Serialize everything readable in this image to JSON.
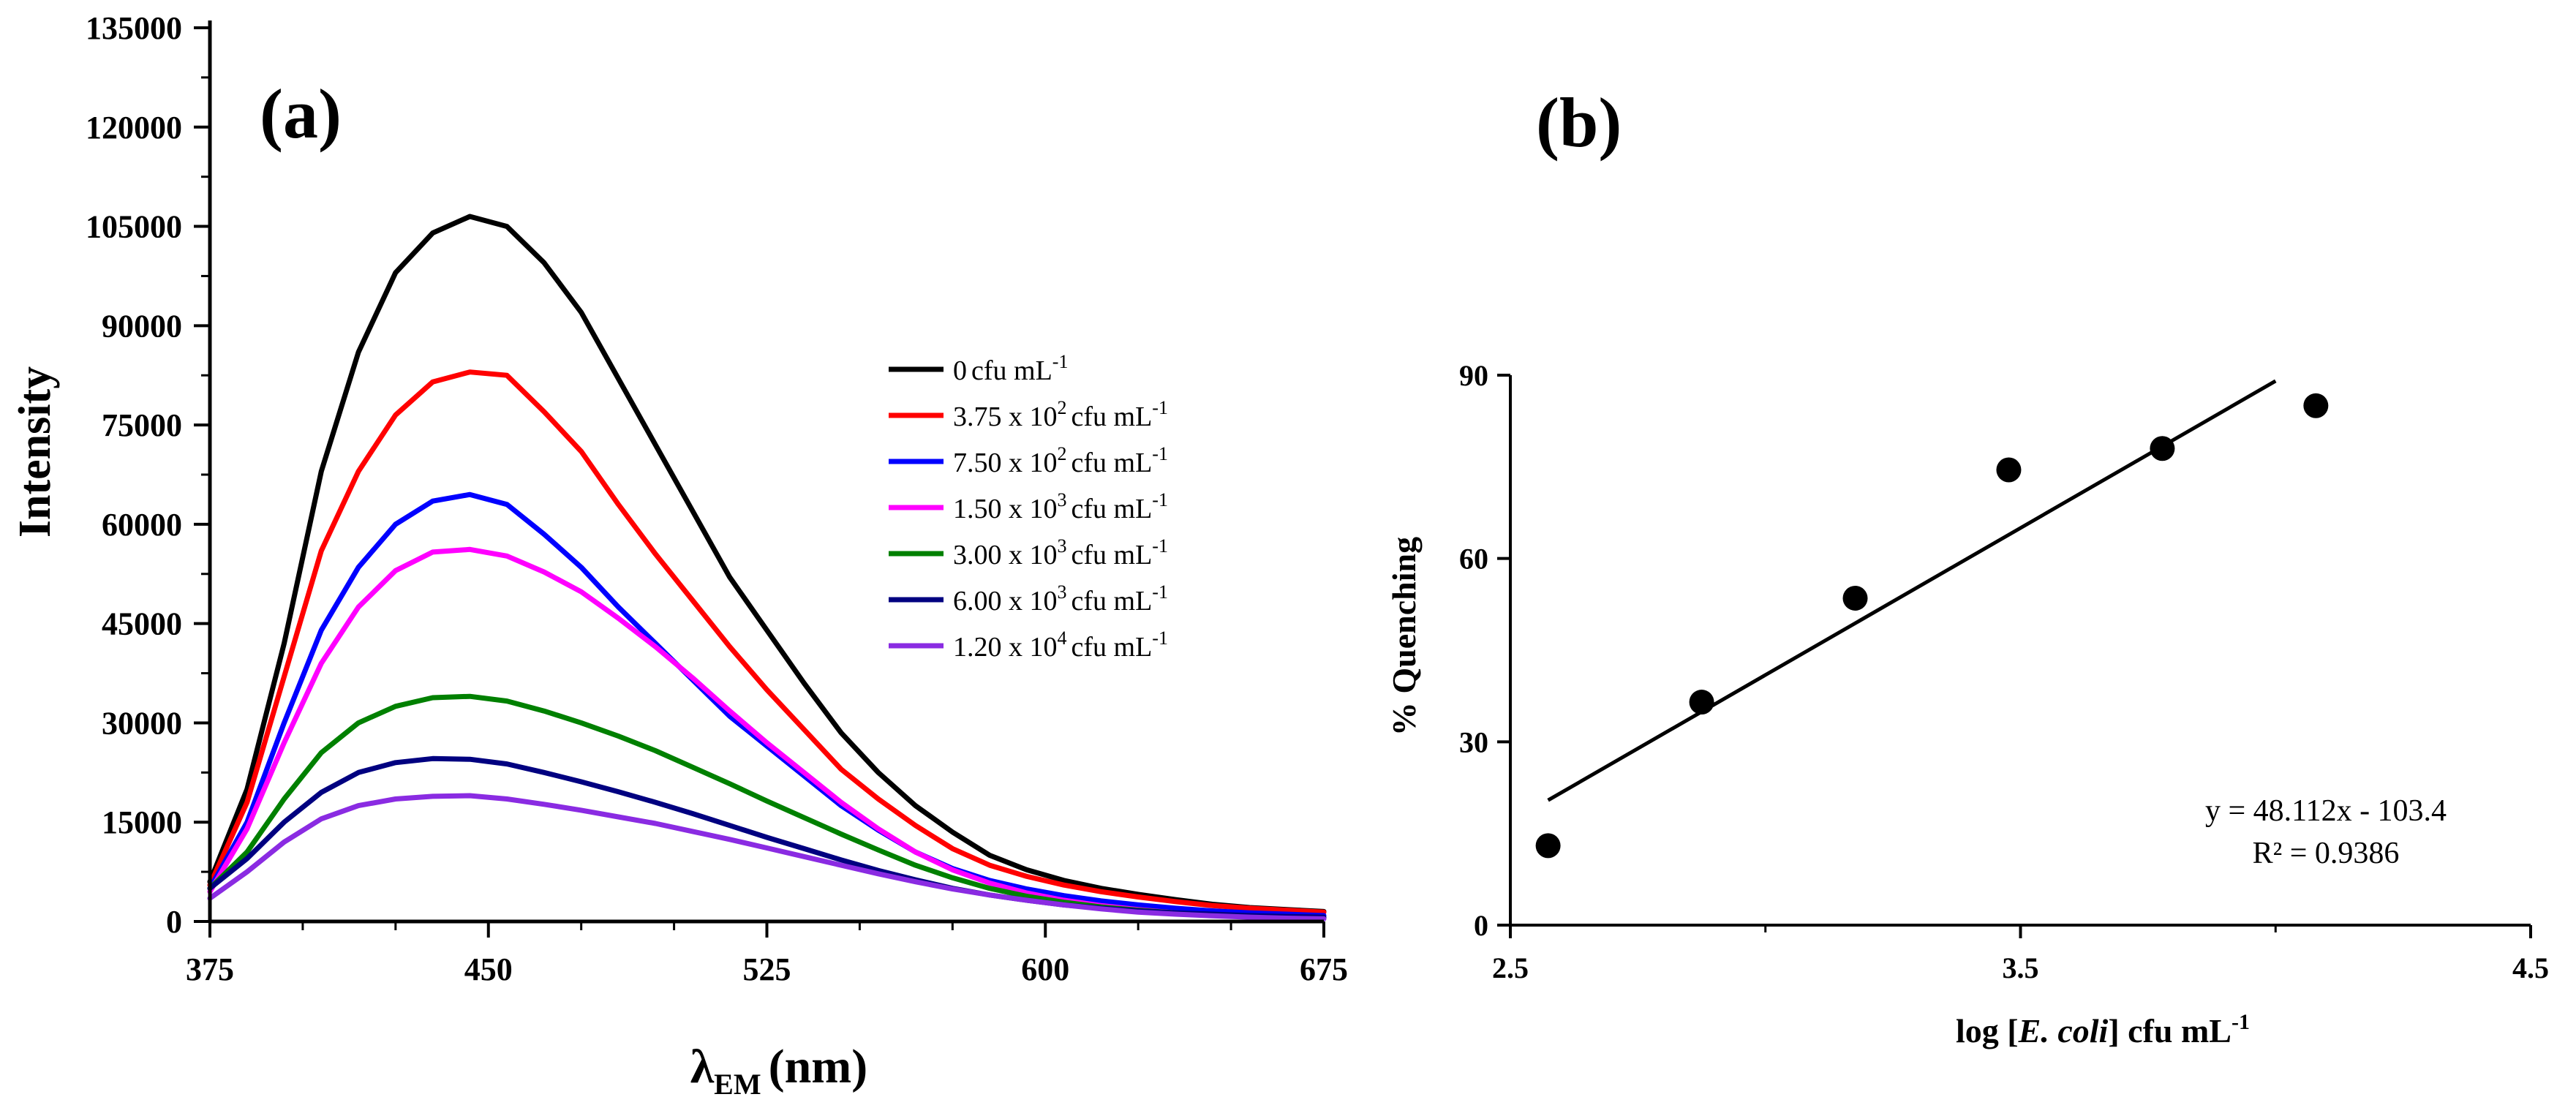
{
  "figure": {
    "panel_a_label": "(a)",
    "panel_b_label": "(b)"
  },
  "chart_data": [
    {
      "panel": "(a)",
      "type": "line",
      "title": "",
      "xlabel_main": "λ",
      "xlabel_sub": "EM",
      "xlabel_unit": "(nm)",
      "ylabel": "Intensity",
      "xlim": [
        375,
        675
      ],
      "ylim": [
        0,
        135000
      ],
      "x_ticks": [
        375,
        450,
        525,
        600,
        675
      ],
      "y_ticks": [
        0,
        15000,
        30000,
        45000,
        60000,
        75000,
        90000,
        105000,
        120000,
        135000
      ],
      "grid": false,
      "legend_position": "center-right",
      "x": [
        375,
        385,
        395,
        405,
        415,
        425,
        435,
        445,
        455,
        465,
        475,
        485,
        495,
        505,
        515,
        525,
        535,
        545,
        555,
        565,
        575,
        585,
        595,
        605,
        615,
        625,
        635,
        645,
        655,
        665,
        675
      ],
      "series": [
        {
          "name": "0 cfu mL",
          "base": "0",
          "exp": "",
          "unit": "cfu mL",
          "unit_exp": "-1",
          "color": "#000000",
          "values": [
            6000,
            20000,
            42000,
            68000,
            86000,
            98000,
            104000,
            106500,
            105000,
            99500,
            92000,
            82000,
            72000,
            62000,
            52000,
            44000,
            36000,
            28500,
            22500,
            17500,
            13500,
            10000,
            7800,
            6200,
            5000,
            4100,
            3300,
            2600,
            2100,
            1800,
            1500
          ]
        },
        {
          "name": "3.75 x 10^2 cfu mL",
          "base": "3.75 x 10",
          "exp": "2",
          "unit": "cfu mL",
          "unit_exp": "-1",
          "color": "#ff0000",
          "values": [
            5500,
            18000,
            37000,
            56000,
            68000,
            76500,
            81500,
            83000,
            82500,
            77000,
            71000,
            63000,
            55500,
            48500,
            41500,
            35000,
            29000,
            23000,
            18500,
            14500,
            11000,
            8500,
            6800,
            5500,
            4500,
            3700,
            3000,
            2400,
            2000,
            1700,
            1400
          ]
        },
        {
          "name": "7.50 x 10^2 cfu mL",
          "base": "7.50 x 10",
          "exp": "2",
          "unit": "cfu mL",
          "unit_exp": "-1",
          "color": "#0000ff",
          "values": [
            5000,
            15000,
            30000,
            44000,
            53500,
            60000,
            63500,
            64500,
            63000,
            58500,
            53500,
            47500,
            42000,
            36500,
            31000,
            26500,
            22000,
            17500,
            13800,
            10500,
            8000,
            6200,
            4900,
            3900,
            3100,
            2500,
            2000,
            1600,
            1300,
            1100,
            900
          ]
        },
        {
          "name": "1.50 x 10^3 cfu mL",
          "base": "1.50 x 10",
          "exp": "3",
          "unit": "cfu mL",
          "unit_exp": "-1",
          "color": "#ff00ff",
          "values": [
            4500,
            14000,
            27000,
            39000,
            47500,
            53000,
            55800,
            56200,
            55200,
            52800,
            49800,
            45800,
            41500,
            36800,
            31800,
            27000,
            22500,
            18000,
            14000,
            10500,
            7800,
            5800,
            4300,
            3200,
            2400,
            1800,
            1300,
            1000,
            800,
            650,
            500
          ]
        },
        {
          "name": "3.00 x 10^3 cfu mL",
          "base": "3.00 x 10",
          "exp": "3",
          "unit": "cfu mL",
          "unit_exp": "-1",
          "color": "#008000",
          "values": [
            5000,
            10500,
            18500,
            25500,
            30000,
            32500,
            33800,
            34000,
            33300,
            31800,
            30000,
            28000,
            25800,
            23300,
            20800,
            18200,
            15700,
            13200,
            10800,
            8500,
            6600,
            5000,
            3800,
            2900,
            2200,
            1700,
            1300,
            1000,
            800,
            650,
            550
          ]
        },
        {
          "name": "6.00 x 10^3 cfu mL",
          "base": "6.00 x 10",
          "exp": "3",
          "unit": "cfu mL",
          "unit_exp": "-1",
          "color": "#000080",
          "values": [
            5000,
            9500,
            15000,
            19500,
            22500,
            24000,
            24600,
            24500,
            23800,
            22500,
            21100,
            19600,
            18000,
            16300,
            14500,
            12700,
            11000,
            9300,
            7700,
            6300,
            5000,
            4000,
            3200,
            2500,
            2000,
            1600,
            1300,
            1100,
            900,
            750,
            650
          ]
        },
        {
          "name": "1.20 x 10^4 cfu mL",
          "base": "1.20 x 10",
          "exp": "4",
          "unit": "cfu mL",
          "unit_exp": "-1",
          "color": "#8a2be2",
          "values": [
            3500,
            7500,
            12000,
            15500,
            17500,
            18500,
            18900,
            19000,
            18500,
            17700,
            16800,
            15800,
            14800,
            13600,
            12400,
            11100,
            9800,
            8500,
            7200,
            6000,
            4900,
            4000,
            3200,
            2500,
            1900,
            1400,
            1100,
            850,
            650,
            500,
            400
          ]
        }
      ]
    },
    {
      "panel": "(b)",
      "type": "scatter",
      "title": "",
      "xlabel_pre": "log [",
      "xlabel_italic": "E. coli",
      "xlabel_post": "] cfu mL",
      "xlabel_exp": "-1",
      "ylabel": "% Quenching",
      "xlim": [
        2.5,
        4.5
      ],
      "ylim": [
        0,
        90
      ],
      "x_ticks": [
        2.5,
        3.5,
        4.5
      ],
      "y_ticks": [
        0,
        30,
        60,
        90
      ],
      "grid": false,
      "points": {
        "x": [
          2.574,
          2.875,
          3.176,
          3.477,
          3.778,
          4.079
        ],
        "y": [
          13,
          36.5,
          53.5,
          74.5,
          78,
          85
        ]
      },
      "trendline": {
        "slope": 48.112,
        "intercept": -103.4,
        "x_range": [
          2.574,
          4.0
        ]
      },
      "equation": "y = 48.112x - 103.4",
      "r_squared": "R² = 0.9386"
    }
  ]
}
